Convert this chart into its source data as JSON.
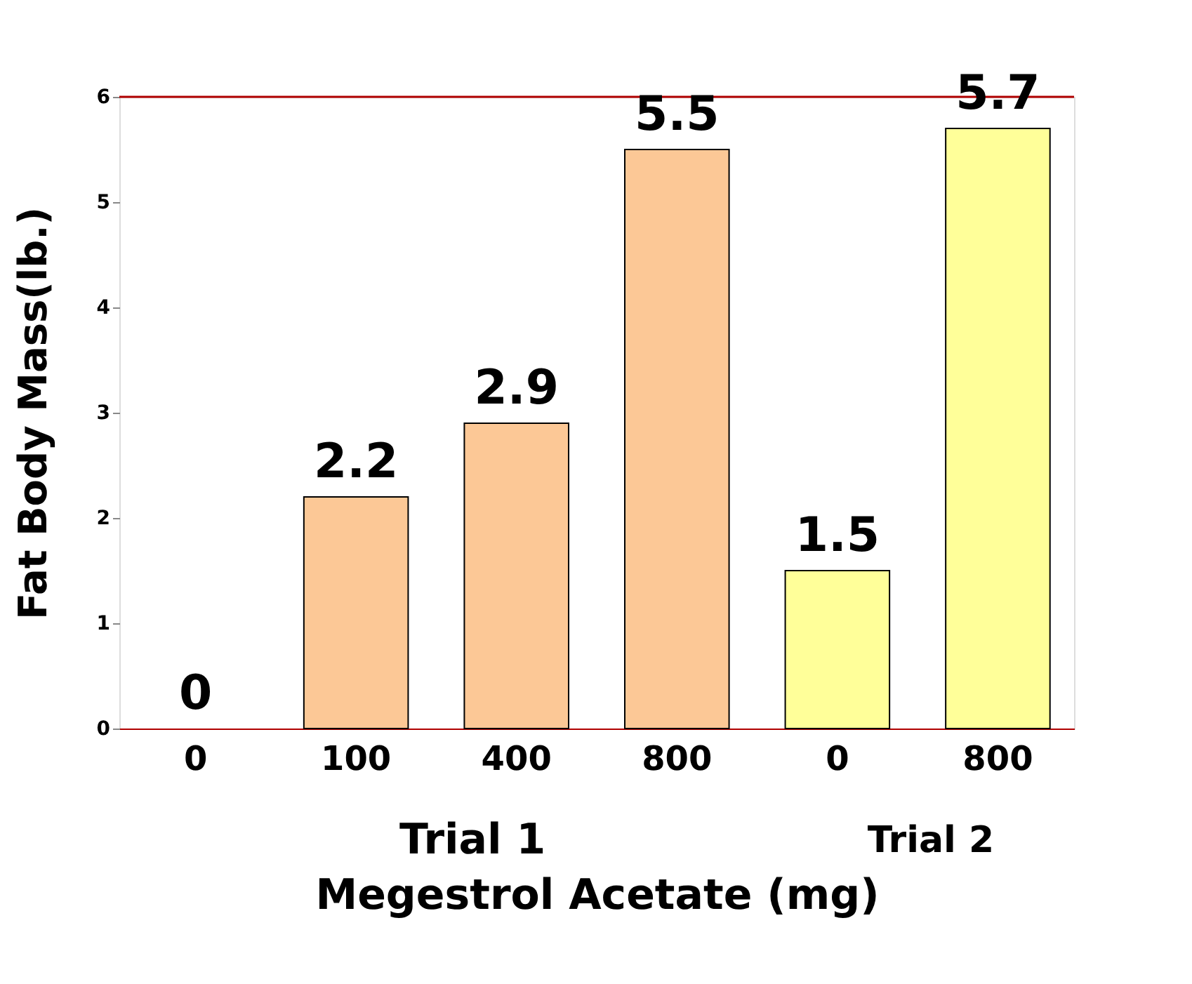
{
  "chart_data": {
    "type": "bar",
    "xlabel": "Megestrol Acetate (mg)",
    "ylabel": "Fat Body Mass(lb.)",
    "categories": [
      "0",
      "100",
      "400",
      "800",
      "0",
      "800"
    ],
    "values": [
      0,
      2.2,
      2.9,
      5.5,
      1.5,
      5.7
    ],
    "colors": [
      "#fcc896",
      "#fcc896",
      "#fcc896",
      "#fcc896",
      "#ffff99",
      "#ffff99"
    ],
    "ylim": [
      0,
      6
    ],
    "yticks": [
      0,
      1,
      2,
      3,
      4,
      5,
      6
    ],
    "grid": false,
    "data_labels": true,
    "ref_lines": [
      {
        "axis": "y",
        "value": 6,
        "color": "#b00000"
      }
    ],
    "annotations": [
      "Trial 1",
      "Trial 2"
    ]
  }
}
